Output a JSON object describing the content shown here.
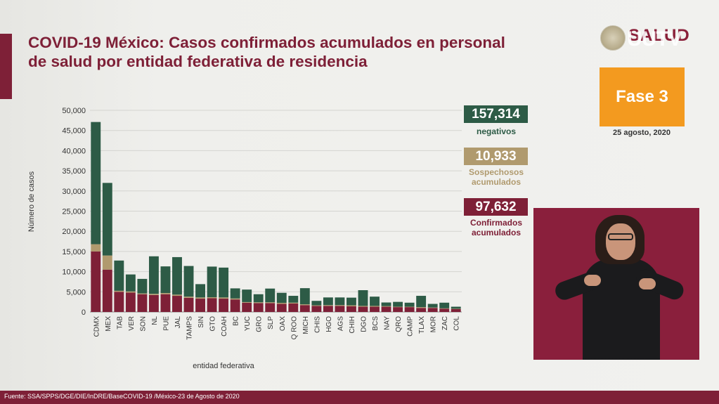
{
  "title": "COVID-19 México: Casos confirmados acumulados en personal de salud por entidad federativa de residencia",
  "logo": {
    "text": "SALUD",
    "overlay": "UUTV"
  },
  "phase": {
    "label": "Fase 3",
    "date": "25 agosto, 2020"
  },
  "stats": {
    "negativos": {
      "value": "157,314",
      "label": "negativos"
    },
    "sospechosos": {
      "value": "10,933",
      "label": "Sospechosos acumulados"
    },
    "confirmados": {
      "value": "97,632",
      "label": "Confirmados acumulados"
    }
  },
  "source": "Fuente: SSA/SPPS/DGE/DIE/InDRE/BaseCOVID-19 /México-23 de Agosto de 2020",
  "colors": {
    "confirmados": "#7e2037",
    "sospechosos": "#b09a6e",
    "negativos": "#2d5b46",
    "orange": "#f39a1f"
  },
  "chart_data": {
    "type": "bar",
    "stacked": true,
    "xlabel": "entidad federativa",
    "ylabel": "Número de casos",
    "ylim": [
      0,
      50000
    ],
    "yticks": [
      "0",
      "5,000",
      "10,000",
      "15,000",
      "20,000",
      "25,000",
      "30,000",
      "35,000",
      "40,000",
      "45,000",
      "50,000"
    ],
    "grid": true,
    "categories": [
      "CDMX",
      "MEX",
      "TAB",
      "VER",
      "SON",
      "NL",
      "PUE",
      "JAL",
      "TAMPS",
      "SIN",
      "GTO",
      "COAH",
      "BC",
      "YUC",
      "GRO",
      "SLP",
      "OAX",
      "Q ROO",
      "MICH",
      "CHIS",
      "HGO",
      "AGS",
      "CHIH",
      "DGO",
      "BCS",
      "NAY",
      "QRO",
      "CAMP",
      "TLAX",
      "MOR",
      "ZAC",
      "COL"
    ],
    "series": [
      {
        "name": "Confirmados acumulados",
        "values": [
          15000,
          10500,
          5000,
          4800,
          4400,
          4200,
          4400,
          4000,
          3500,
          3300,
          3400,
          3300,
          3100,
          2300,
          2200,
          2200,
          2000,
          2100,
          1700,
          1500,
          1500,
          1500,
          1400,
          1300,
          1300,
          1300,
          1200,
          1200,
          1000,
          1000,
          800,
          700
        ]
      },
      {
        "name": "Sospechosos acumulados",
        "values": [
          1800,
          3500,
          250,
          300,
          200,
          300,
          300,
          300,
          300,
          300,
          250,
          300,
          250,
          150,
          200,
          200,
          250,
          200,
          200,
          150,
          200,
          200,
          250,
          200,
          200,
          150,
          100,
          100,
          200,
          100,
          100,
          100
        ]
      },
      {
        "name": "negativos",
        "values": [
          30300,
          18000,
          7500,
          4200,
          3600,
          9300,
          6600,
          9300,
          7600,
          3300,
          7600,
          7400,
          2500,
          3100,
          2000,
          3400,
          2500,
          1700,
          4000,
          1100,
          1900,
          1900,
          1900,
          3900,
          2300,
          900,
          1200,
          1000,
          2800,
          900,
          1400,
          500
        ]
      }
    ]
  }
}
